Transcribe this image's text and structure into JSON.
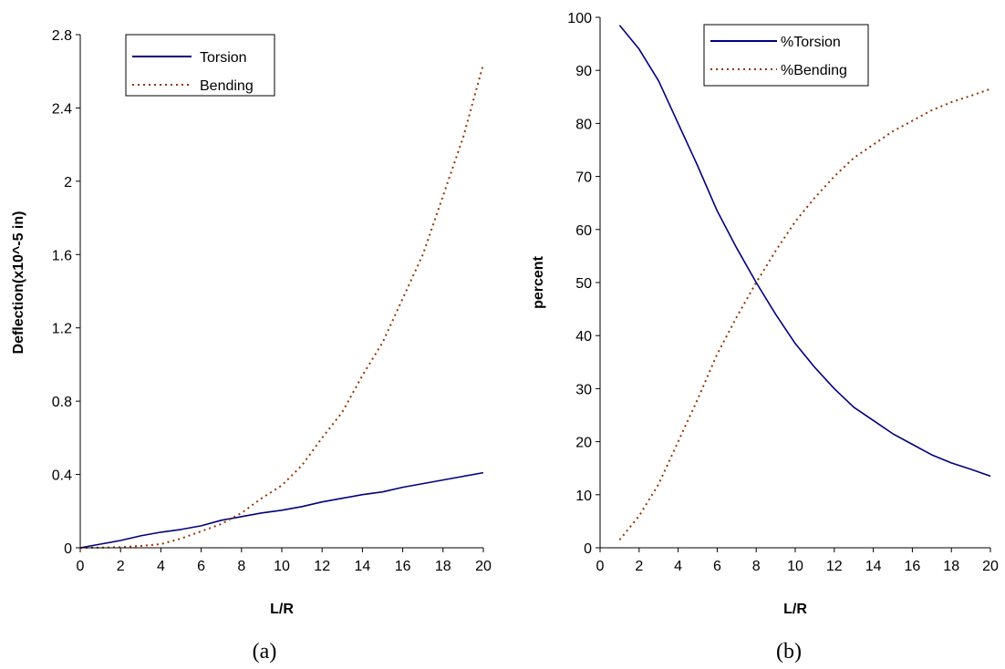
{
  "chart_data": [
    {
      "type": "line",
      "caption": "(a)",
      "xlabel": "L/R",
      "ylabel": "Deflection(x10^-5 in)",
      "xlim": [
        0,
        20
      ],
      "ylim": [
        0,
        2.8
      ],
      "x_ticks": [
        "0",
        "2",
        "4",
        "6",
        "8",
        "10",
        "12",
        "14",
        "16",
        "18",
        "20"
      ],
      "y_ticks": [
        "0",
        "0.4",
        "0.8",
        "1.2",
        "1.6",
        "2",
        "2.4",
        "2.8"
      ],
      "legend_position": "top-left",
      "series": [
        {
          "name": "Torsion",
          "color": "#000080",
          "dash": "solid",
          "x": [
            0,
            1,
            2,
            3,
            4,
            5,
            6,
            7,
            8,
            9,
            10,
            11,
            12,
            13,
            14,
            15,
            16,
            17,
            18,
            19,
            20
          ],
          "y": [
            0,
            0.02,
            0.04,
            0.065,
            0.085,
            0.1,
            0.12,
            0.15,
            0.17,
            0.19,
            0.205,
            0.225,
            0.25,
            0.27,
            0.29,
            0.305,
            0.33,
            0.35,
            0.37,
            0.39,
            0.41
          ]
        },
        {
          "name": "Bending",
          "color": "#993300",
          "dash": "dotted",
          "x": [
            0,
            1,
            2,
            3,
            4,
            5,
            6,
            7,
            8,
            9,
            10,
            11,
            12,
            13,
            14,
            15,
            16,
            17,
            18,
            19,
            20
          ],
          "y": [
            0,
            0.001,
            0.003,
            0.01,
            0.02,
            0.05,
            0.09,
            0.13,
            0.19,
            0.27,
            0.34,
            0.45,
            0.6,
            0.74,
            0.94,
            1.12,
            1.36,
            1.6,
            1.92,
            2.24,
            2.64
          ]
        }
      ]
    },
    {
      "type": "line",
      "caption": "(b)",
      "xlabel": "L/R",
      "ylabel": "percent",
      "xlim": [
        0,
        20
      ],
      "ylim": [
        0,
        100
      ],
      "x_ticks": [
        "0",
        "2",
        "4",
        "6",
        "8",
        "10",
        "12",
        "14",
        "16",
        "18",
        "20"
      ],
      "y_ticks": [
        "0",
        "10",
        "20",
        "30",
        "40",
        "50",
        "60",
        "70",
        "80",
        "90",
        "100"
      ],
      "legend_position": "top-center",
      "series": [
        {
          "name": "%Torsion",
          "color": "#000080",
          "dash": "solid",
          "x": [
            1,
            2,
            3,
            4,
            5,
            6,
            7,
            8,
            9,
            10,
            11,
            12,
            13,
            14,
            15,
            16,
            17,
            18,
            19,
            20
          ],
          "y": [
            98.5,
            94,
            88,
            80,
            72,
            63.5,
            56.5,
            50,
            44,
            38.5,
            34,
            30,
            26.5,
            24,
            21.5,
            19.5,
            17.5,
            16,
            14.8,
            13.5
          ]
        },
        {
          "name": "%Bending",
          "color": "#993300",
          "dash": "dotted",
          "x": [
            1,
            2,
            3,
            4,
            5,
            6,
            7,
            8,
            9,
            10,
            11,
            12,
            13,
            14,
            15,
            16,
            17,
            18,
            19,
            20
          ],
          "y": [
            1.5,
            6,
            12,
            20,
            28,
            36.5,
            43.5,
            50,
            56,
            61.5,
            66,
            70,
            73.5,
            76,
            78.5,
            80.5,
            82.5,
            84,
            85.2,
            86.5
          ]
        }
      ]
    }
  ]
}
